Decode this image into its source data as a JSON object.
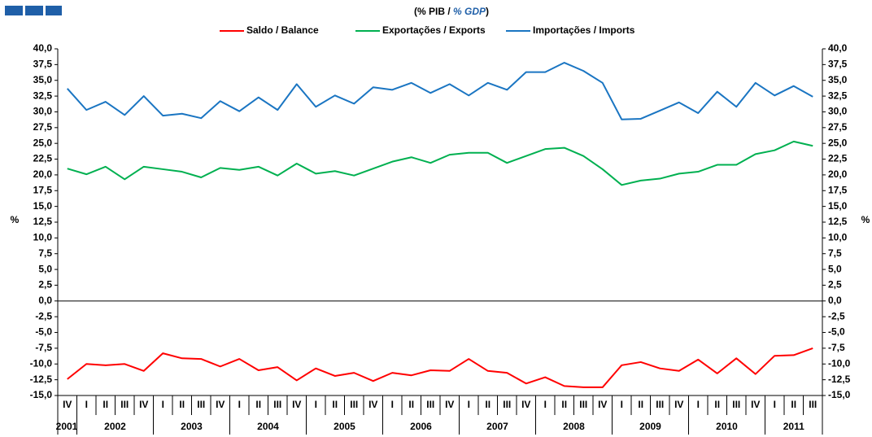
{
  "chart_data": {
    "type": "line",
    "title": [
      "(% PIB / ",
      "% GDP",
      ")"
    ],
    "y_label": "%",
    "y2_label": "%",
    "category_groups": [
      {
        "label": "2001",
        "categories": [
          "IV"
        ]
      },
      {
        "label": "2002",
        "categories": [
          "I",
          "II",
          "III",
          "IV"
        ]
      },
      {
        "label": "2003",
        "categories": [
          "I",
          "II",
          "III",
          "IV"
        ]
      },
      {
        "label": "2004",
        "categories": [
          "I",
          "II",
          "III",
          "IV"
        ]
      },
      {
        "label": "2005",
        "categories": [
          "I",
          "II",
          "III",
          "IV"
        ]
      },
      {
        "label": "2006",
        "categories": [
          "I",
          "II",
          "III",
          "IV"
        ]
      },
      {
        "label": "2007",
        "categories": [
          "I",
          "II",
          "III",
          "IV"
        ]
      },
      {
        "label": "2008",
        "categories": [
          "I",
          "II",
          "III",
          "IV"
        ]
      },
      {
        "label": "2009",
        "categories": [
          "I",
          "II",
          "III",
          "IV"
        ]
      },
      {
        "label": "2010",
        "categories": [
          "I",
          "II",
          "III",
          "IV"
        ]
      },
      {
        "label": "2011",
        "categories": [
          "I",
          "II",
          "III"
        ]
      }
    ],
    "series": [
      {
        "name": "Saldo / Balance",
        "color": "#ff0000",
        "values": [
          -12.4,
          -10.0,
          -10.2,
          -10.0,
          -11.1,
          -8.3,
          -9.1,
          -9.2,
          -10.4,
          -9.2,
          -11.0,
          -10.5,
          -12.6,
          -10.7,
          -11.9,
          -11.4,
          -12.7,
          -11.4,
          -11.8,
          -11.0,
          -11.1,
          -9.2,
          -11.1,
          -11.4,
          -13.1,
          -12.1,
          -13.5,
          -13.7,
          -13.7,
          -10.2,
          -9.7,
          -10.7,
          -11.1,
          -9.3,
          -11.5,
          -9.1,
          -11.6,
          -8.7,
          -8.6,
          -7.5
        ]
      },
      {
        "name": "Exportações / Exports",
        "color": "#00b050",
        "values": [
          21.0,
          20.1,
          21.3,
          19.3,
          21.3,
          20.9,
          20.5,
          19.6,
          21.1,
          20.8,
          21.3,
          19.9,
          21.8,
          20.2,
          20.6,
          19.9,
          21.0,
          22.1,
          22.8,
          21.9,
          23.2,
          23.5,
          23.5,
          21.9,
          23.0,
          24.1,
          24.3,
          23.0,
          20.9,
          18.4,
          19.1,
          19.4,
          20.2,
          20.5,
          21.6,
          21.6,
          23.3,
          23.9,
          25.3,
          24.6
        ]
      },
      {
        "name": "Importações / Imports",
        "color": "#1a75c2",
        "values": [
          33.7,
          30.3,
          31.6,
          29.5,
          32.5,
          29.4,
          29.7,
          29.0,
          31.7,
          30.1,
          32.3,
          30.3,
          34.4,
          30.8,
          32.6,
          31.3,
          33.9,
          33.5,
          34.6,
          33.0,
          34.4,
          32.6,
          34.6,
          33.5,
          36.3,
          36.3,
          37.8,
          36.5,
          34.6,
          28.8,
          28.9,
          30.2,
          31.5,
          29.8,
          33.2,
          30.8,
          34.6,
          32.6,
          34.1,
          32.4
        ]
      }
    ],
    "ylim": [
      -15,
      40
    ],
    "yticks": [
      {
        "value": -15,
        "label": "-15,0"
      },
      {
        "value": -12.5,
        "label": "-12,5"
      },
      {
        "value": -10,
        "label": "-10,0"
      },
      {
        "value": -7.5,
        "label": "-7,5"
      },
      {
        "value": -5,
        "label": "-5,0"
      },
      {
        "value": -2.5,
        "label": "-2,5"
      },
      {
        "value": 0,
        "label": "0,0"
      },
      {
        "value": 2.5,
        "label": "2,5"
      },
      {
        "value": 5,
        "label": "5,0"
      },
      {
        "value": 7.5,
        "label": "7,5"
      },
      {
        "value": 10,
        "label": "10,0"
      },
      {
        "value": 12.5,
        "label": "12,5"
      },
      {
        "value": 15,
        "label": "15,0"
      },
      {
        "value": 17.5,
        "label": "17,5"
      },
      {
        "value": 20,
        "label": "20,0"
      },
      {
        "value": 22.5,
        "label": "22,5"
      },
      {
        "value": 25,
        "label": "25,0"
      },
      {
        "value": 27.5,
        "label": "27,5"
      },
      {
        "value": 30,
        "label": "30,0"
      },
      {
        "value": 32.5,
        "label": "32,5"
      },
      {
        "value": 35,
        "label": "35,0"
      },
      {
        "value": 37.5,
        "label": "37,5"
      },
      {
        "value": 40,
        "label": "40,0"
      }
    ],
    "y2lim": [
      -15,
      40
    ],
    "y2ticks": [
      {
        "value": -15,
        "label": "-15,0"
      },
      {
        "value": -12.5,
        "label": "-12,5"
      },
      {
        "value": -10,
        "label": "-10,0"
      },
      {
        "value": -7.5,
        "label": "-7,5"
      },
      {
        "value": -5,
        "label": "-5,0"
      },
      {
        "value": -2.5,
        "label": "-2,5"
      },
      {
        "value": 0,
        "label": "0,0"
      },
      {
        "value": 2.5,
        "label": "2,5"
      },
      {
        "value": 5,
        "label": "5,0"
      },
      {
        "value": 7.5,
        "label": "7,5"
      },
      {
        "value": 10,
        "label": "10,0"
      },
      {
        "value": 12.5,
        "label": "12,5"
      },
      {
        "value": 15,
        "label": "15,0"
      },
      {
        "value": 17.5,
        "label": "17,5"
      },
      {
        "value": 20,
        "label": "20,0"
      },
      {
        "value": 22.5,
        "label": "22,5"
      },
      {
        "value": 25,
        "label": "25,0"
      },
      {
        "value": 27.5,
        "label": "27,5"
      },
      {
        "value": 30,
        "label": "30,0"
      },
      {
        "value": 32.5,
        "label": "32,5"
      },
      {
        "value": 35,
        "label": "35,0"
      },
      {
        "value": 37.5,
        "label": "37,5"
      },
      {
        "value": 40,
        "label": "40,0"
      }
    ],
    "grid": false
  }
}
